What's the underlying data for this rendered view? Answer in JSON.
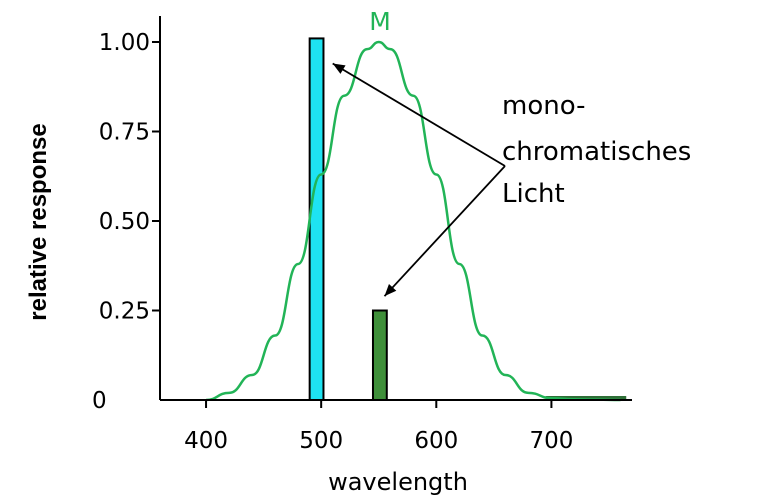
{
  "chart_data": {
    "type": "bar",
    "xlabel": "wavelength",
    "ylabel": "relative response",
    "xlim": [
      360,
      770
    ],
    "ylim": [
      0,
      1.0
    ],
    "x_ticks": [
      400,
      500,
      600,
      700
    ],
    "y_ticks": [
      0,
      0.25,
      0.5,
      0.75,
      1.0
    ],
    "y_tick_labels": [
      "0",
      "0.25",
      "0.50",
      "0.75",
      "1.00"
    ],
    "grid": false,
    "curve": {
      "label": "M",
      "color": "#22b457",
      "points": [
        [
          400,
          0.0
        ],
        [
          420,
          0.02
        ],
        [
          440,
          0.07
        ],
        [
          460,
          0.18
        ],
        [
          480,
          0.38
        ],
        [
          500,
          0.63
        ],
        [
          520,
          0.85
        ],
        [
          540,
          0.98
        ],
        [
          550,
          1.0
        ],
        [
          560,
          0.98
        ],
        [
          580,
          0.85
        ],
        [
          600,
          0.63
        ],
        [
          620,
          0.38
        ],
        [
          640,
          0.18
        ],
        [
          660,
          0.07
        ],
        [
          680,
          0.02
        ],
        [
          700,
          0.005
        ],
        [
          720,
          0.002
        ],
        [
          740,
          0.001
        ],
        [
          760,
          0.0
        ]
      ]
    },
    "bars": [
      {
        "x": 490,
        "width": 12,
        "value": 1.01,
        "color": "#1ee3f2"
      },
      {
        "x": 545,
        "width": 12,
        "value": 0.25,
        "color": "#3f8f3a"
      }
    ],
    "baseline_bar": {
      "x_start": 695,
      "x_end": 765,
      "color": "#2f6f37"
    },
    "annotation": {
      "lines": [
        "mono-",
        "chromatisches",
        "Licht"
      ],
      "arrow_targets": [
        [
          510,
          0.94
        ],
        [
          555,
          0.29
        ]
      ]
    }
  }
}
